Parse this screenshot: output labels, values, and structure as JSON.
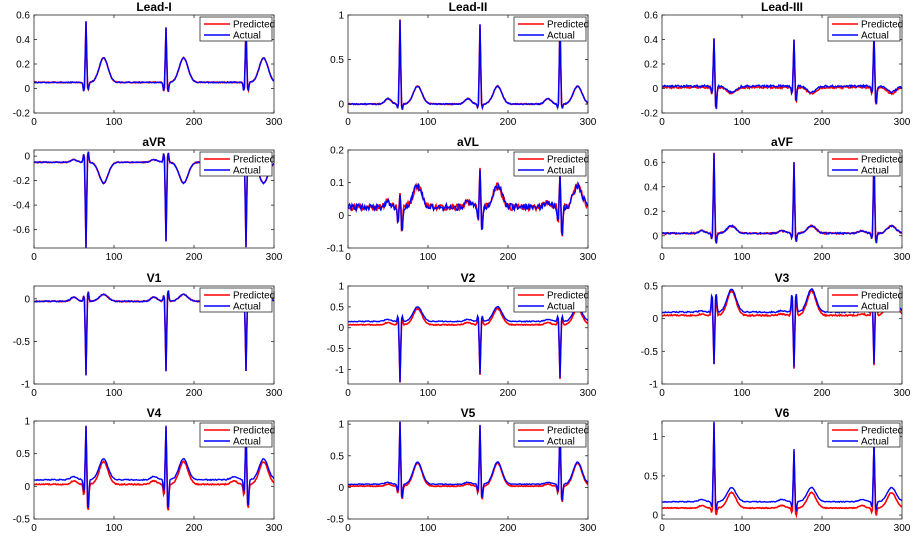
{
  "legend": {
    "predicted_label": "Predicted",
    "actual_label": "Actual",
    "placement": "top-right"
  },
  "colors": {
    "predicted": "#ff0000",
    "actual": "#0000ff",
    "axis": "#262626"
  },
  "beats": [
    65,
    165,
    265
  ],
  "chart_data": [
    {
      "type": "line",
      "title": "Lead-I",
      "xlim": [
        0,
        300
      ],
      "ylim": [
        -0.2,
        0.6
      ],
      "yticks": [
        -0.2,
        0,
        0.2,
        0.4,
        0.6
      ],
      "ytick_labels": [
        "-0.2",
        "0",
        "0.2",
        "0.4",
        "0.6"
      ],
      "xticks": [
        0,
        100,
        200,
        300
      ],
      "xtick_labels": [
        "0",
        "100",
        "200",
        "300"
      ],
      "beat": {
        "base": 0.05,
        "p": 0.05,
        "q": -0.03,
        "r": 0.5,
        "s": -0.06,
        "t": 0.25,
        "u": 0.0
      },
      "peaks": [
        0.55,
        0.5,
        0.52
      ],
      "noise": 0.004,
      "offset": 0.0,
      "scale": 1.0,
      "neg": [
        -0.02,
        -0.04,
        -0.03
      ]
    },
    {
      "type": "line",
      "title": "Lead-II",
      "xlim": [
        0,
        300
      ],
      "ylim": [
        -0.1,
        1.0
      ],
      "yticks": [
        0,
        0.5,
        1
      ],
      "ytick_labels": [
        "0",
        "0.5",
        "1"
      ],
      "xticks": [
        0,
        100,
        200,
        300
      ],
      "xtick_labels": [
        "0",
        "100",
        "200",
        "300"
      ],
      "beat": {
        "base": 0.0,
        "p": 0.06,
        "q": -0.05,
        "r": 0.95,
        "s": -0.1,
        "t": 0.2,
        "u": 0.0
      },
      "peaks": [
        0.95,
        0.9,
        0.95
      ],
      "noise": 0.006,
      "offset": 0.0,
      "scale": 1.0,
      "neg": [
        -0.07,
        -0.05,
        -0.06
      ]
    },
    {
      "type": "line",
      "title": "Lead-III",
      "xlim": [
        0,
        300
      ],
      "ylim": [
        -0.2,
        0.6
      ],
      "yticks": [
        -0.2,
        0,
        0.2,
        0.4,
        0.6
      ],
      "ytick_labels": [
        "-0.2",
        "0",
        "0.2",
        "0.4",
        "0.6"
      ],
      "xticks": [
        0,
        100,
        200,
        300
      ],
      "xtick_labels": [
        "0",
        "100",
        "200",
        "300"
      ],
      "beat": {
        "base": 0.02,
        "p": 0.02,
        "q": -0.04,
        "r": 0.42,
        "s": -0.18,
        "t": -0.03,
        "u": 0.0
      },
      "peaks": [
        0.42,
        0.4,
        0.45
      ],
      "noise": 0.008,
      "offset": -0.01,
      "scale": 1.0,
      "neg": [
        -0.18,
        -0.12,
        -0.15
      ]
    },
    {
      "type": "line",
      "title": "aVR",
      "xlim": [
        0,
        300
      ],
      "ylim": [
        -0.75,
        0.05
      ],
      "yticks": [
        -0.6,
        -0.4,
        -0.2,
        0
      ],
      "ytick_labels": [
        "-0.6",
        "-0.4",
        "-0.2",
        "0"
      ],
      "xticks": [
        0,
        100,
        200,
        300
      ],
      "xtick_labels": [
        "0",
        "100",
        "200",
        "300"
      ],
      "beat": {
        "base": -0.05,
        "p": -0.03,
        "q": 0.03,
        "r": -0.72,
        "s": 0.05,
        "t": -0.22,
        "u": 0.0
      },
      "peaks": [
        -0.75,
        -0.7,
        -0.75
      ],
      "noise": 0.004,
      "offset": 0.0,
      "scale": 1.0,
      "neg": [
        0.05,
        0.04,
        0.05
      ]
    },
    {
      "type": "line",
      "title": "aVL",
      "xlim": [
        0,
        300
      ],
      "ylim": [
        -0.1,
        0.2
      ],
      "yticks": [
        -0.1,
        0,
        0.1,
        0.2
      ],
      "ytick_labels": [
        "-0.1",
        "0",
        "0.1",
        "0.2"
      ],
      "xticks": [
        0,
        100,
        200,
        300
      ],
      "xtick_labels": [
        "0",
        "100",
        "200",
        "300"
      ],
      "beat": {
        "base": 0.025,
        "p": 0.04,
        "q": -0.02,
        "r": 0.13,
        "s": -0.05,
        "t": 0.09,
        "u": 0.0
      },
      "peaks": [
        0.07,
        0.14,
        0.12
      ],
      "noise": 0.01,
      "offset": 0.0,
      "scale": 1.0,
      "neg": [
        -0.06,
        -0.05,
        -0.07
      ]
    },
    {
      "type": "line",
      "title": "aVF",
      "xlim": [
        0,
        300
      ],
      "ylim": [
        -0.1,
        0.7
      ],
      "yticks": [
        0,
        0.2,
        0.4,
        0.6
      ],
      "ytick_labels": [
        "0",
        "0.2",
        "0.4",
        "0.6"
      ],
      "xticks": [
        0,
        100,
        200,
        300
      ],
      "xtick_labels": [
        "0",
        "100",
        "200",
        "300"
      ],
      "beat": {
        "base": 0.02,
        "p": 0.04,
        "q": -0.03,
        "r": 0.68,
        "s": -0.08,
        "t": 0.08,
        "u": 0.0
      },
      "peaks": [
        0.68,
        0.6,
        0.68
      ],
      "noise": 0.006,
      "offset": 0.0,
      "scale": 1.0,
      "neg": [
        -0.08,
        -0.06,
        -0.07
      ]
    },
    {
      "type": "line",
      "title": "V1",
      "xlim": [
        0,
        300
      ],
      "ylim": [
        -1.0,
        0.15
      ],
      "yticks": [
        -1,
        -0.5,
        0
      ],
      "ytick_labels": [
        "-1",
        "-0.5",
        "0"
      ],
      "xticks": [
        0,
        100,
        200,
        300
      ],
      "xtick_labels": [
        "0",
        "100",
        "200",
        "300"
      ],
      "beat": {
        "base": -0.03,
        "p": 0.02,
        "q": 0.05,
        "r": -0.9,
        "s": 0.1,
        "t": 0.05,
        "u": 0.0
      },
      "peaks": [
        -0.9,
        -0.85,
        -0.85
      ],
      "noise": 0.006,
      "offset": 0.0,
      "scale": 1.0,
      "neg": [
        0.1,
        0.12,
        0.08
      ]
    },
    {
      "type": "line",
      "title": "V2",
      "xlim": [
        0,
        300
      ],
      "ylim": [
        -1.35,
        1.0
      ],
      "yticks": [
        -1,
        -0.5,
        0,
        0.5,
        1
      ],
      "ytick_labels": [
        "-1",
        "-0.5",
        "0",
        "0.5",
        "1"
      ],
      "xticks": [
        0,
        100,
        200,
        300
      ],
      "xtick_labels": [
        "0",
        "100",
        "200",
        "300"
      ],
      "beat": {
        "base": 0.15,
        "p": 0.2,
        "q": 0.3,
        "r": -1.3,
        "s": 0.35,
        "t": 0.5,
        "u": 0.0
      },
      "peaks": [
        -1.3,
        -1.1,
        -1.2
      ],
      "noise": 0.01,
      "offset": -0.08,
      "scale": 1.0,
      "neg": [
        0.3,
        0.3,
        0.3
      ]
    },
    {
      "type": "line",
      "title": "V3",
      "xlim": [
        0,
        300
      ],
      "ylim": [
        -1.0,
        0.5
      ],
      "yticks": [
        -1,
        -0.5,
        0,
        0.5
      ],
      "ytick_labels": [
        "-1",
        "-0.5",
        "0",
        "0.5"
      ],
      "xticks": [
        0,
        100,
        200,
        300
      ],
      "xtick_labels": [
        "0",
        "100",
        "200",
        "300"
      ],
      "beat": {
        "base": 0.1,
        "p": 0.12,
        "q": 0.4,
        "r": -0.7,
        "s": 0.35,
        "t": 0.45,
        "u": 0.0
      },
      "peaks": [
        -0.7,
        -0.75,
        -0.7
      ],
      "noise": 0.01,
      "offset": -0.05,
      "scale": 1.0,
      "neg": [
        0.42,
        0.42,
        0.42
      ]
    },
    {
      "type": "line",
      "title": "V4",
      "xlim": [
        0,
        300
      ],
      "ylim": [
        -0.5,
        1.0
      ],
      "yticks": [
        -0.5,
        0,
        0.5,
        1
      ],
      "ytick_labels": [
        "-0.5",
        "0",
        "0.5",
        "1"
      ],
      "xticks": [
        0,
        100,
        200,
        300
      ],
      "xtick_labels": [
        "0",
        "100",
        "200",
        "300"
      ],
      "beat": {
        "base": 0.1,
        "p": 0.15,
        "q": -0.1,
        "r": 0.95,
        "s": -0.4,
        "t": 0.42,
        "u": 0.0
      },
      "peaks": [
        0.95,
        0.95,
        0.9
      ],
      "noise": 0.008,
      "offset": -0.07,
      "scale": 1.0,
      "neg": [
        -0.4,
        -0.4,
        -0.35
      ]
    },
    {
      "type": "line",
      "title": "V5",
      "xlim": [
        0,
        300
      ],
      "ylim": [
        -0.5,
        1.05
      ],
      "yticks": [
        -0.5,
        0,
        0.5,
        1
      ],
      "ytick_labels": [
        "-0.5",
        "0",
        "0.5",
        "1"
      ],
      "xticks": [
        0,
        100,
        200,
        300
      ],
      "xtick_labels": [
        "0",
        "100",
        "200",
        "300"
      ],
      "beat": {
        "base": 0.05,
        "p": 0.08,
        "q": -0.08,
        "r": 1.05,
        "s": -0.2,
        "t": 0.4,
        "u": 0.0
      },
      "peaks": [
        1.05,
        1.0,
        1.0
      ],
      "noise": 0.006,
      "offset": -0.03,
      "scale": 1.0,
      "neg": [
        -0.2,
        -0.2,
        -0.25
      ]
    },
    {
      "type": "line",
      "title": "V6",
      "xlim": [
        0,
        300
      ],
      "ylim": [
        -0.05,
        1.2
      ],
      "yticks": [
        0,
        0.5,
        1
      ],
      "ytick_labels": [
        "0",
        "0.5",
        "1"
      ],
      "xticks": [
        0,
        100,
        200,
        300
      ],
      "xtick_labels": [
        "0",
        "100",
        "200",
        "300"
      ],
      "beat": {
        "base": 0.17,
        "p": 0.2,
        "q": 0.1,
        "r": 1.2,
        "s": 0.05,
        "t": 0.35,
        "u": 0.0
      },
      "peaks": [
        1.2,
        0.85,
        0.95
      ],
      "noise": 0.005,
      "offset": -0.08,
      "scale": 1.0,
      "neg": [
        0.05,
        0.05,
        0.05
      ]
    }
  ]
}
